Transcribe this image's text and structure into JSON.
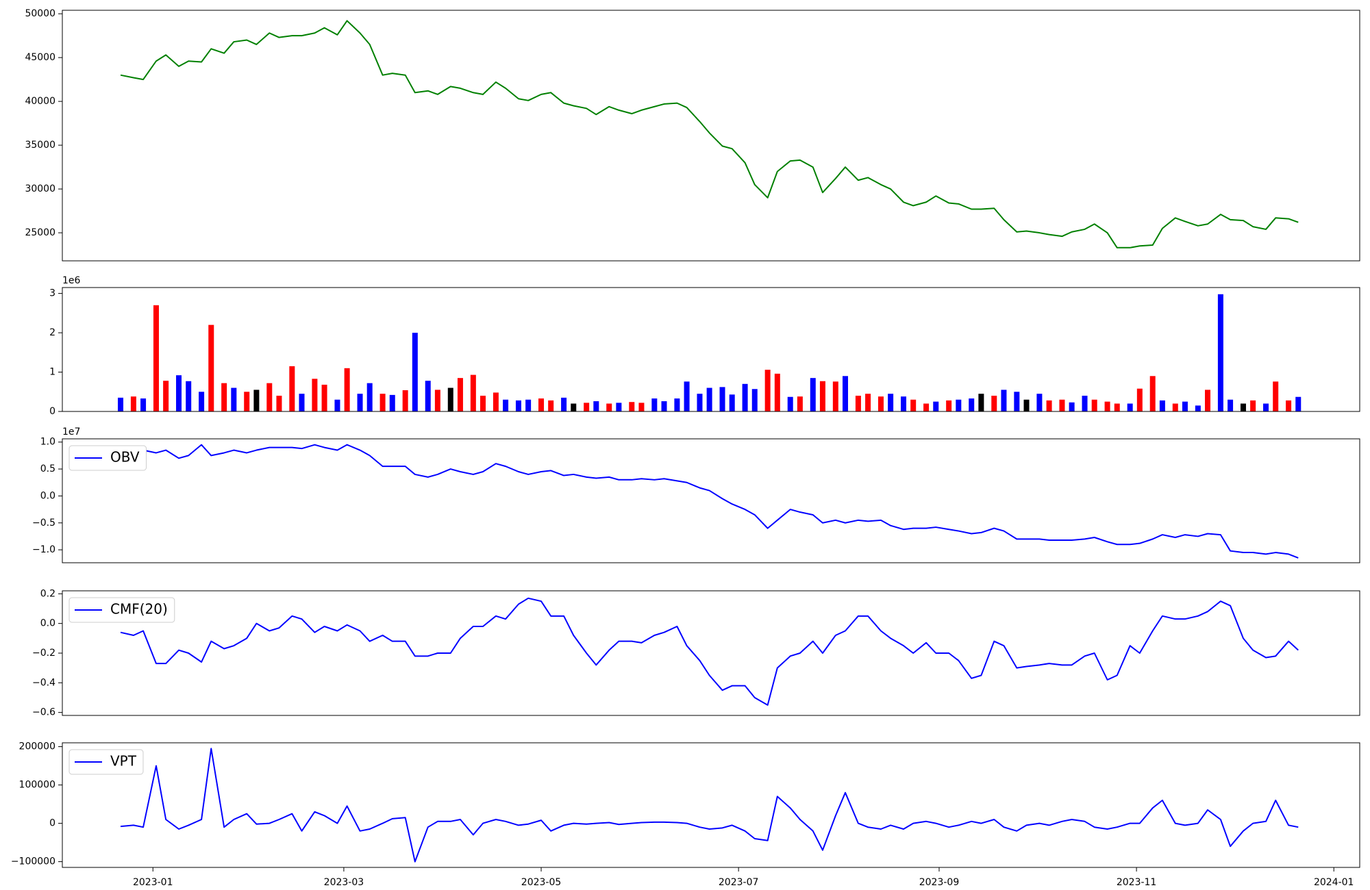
{
  "chart_data": [
    {
      "type": "line",
      "x": [
        "2022-12-22",
        "2022-12-26",
        "2022-12-29",
        "2023-01-02",
        "2023-01-05",
        "2023-01-09",
        "2023-01-12",
        "2023-01-16",
        "2023-01-19",
        "2023-01-23",
        "2023-01-26",
        "2023-01-30",
        "2023-02-02",
        "2023-02-06",
        "2023-02-09",
        "2023-02-13",
        "2023-02-16",
        "2023-02-20",
        "2023-02-23",
        "2023-02-27",
        "2023-03-02",
        "2023-03-06",
        "2023-03-09",
        "2023-03-13",
        "2023-03-16",
        "2023-03-20",
        "2023-03-23",
        "2023-03-27",
        "2023-03-30",
        "2023-04-03",
        "2023-04-06",
        "2023-04-10",
        "2023-04-13",
        "2023-04-17",
        "2023-04-20",
        "2023-04-24",
        "2023-04-27",
        "2023-05-01",
        "2023-05-04",
        "2023-05-08",
        "2023-05-11",
        "2023-05-15",
        "2023-05-18",
        "2023-05-22",
        "2023-05-25",
        "2023-05-29",
        "2023-06-01",
        "2023-06-05",
        "2023-06-08",
        "2023-06-12",
        "2023-06-15",
        "2023-06-19",
        "2023-06-22",
        "2023-06-26",
        "2023-06-29",
        "2023-07-03",
        "2023-07-06",
        "2023-07-10",
        "2023-07-13",
        "2023-07-17",
        "2023-07-20",
        "2023-07-24",
        "2023-07-27",
        "2023-07-31",
        "2023-08-03",
        "2023-08-07",
        "2023-08-10",
        "2023-08-14",
        "2023-08-17",
        "2023-08-21",
        "2023-08-24",
        "2023-08-28",
        "2023-08-31",
        "2023-09-04",
        "2023-09-07",
        "2023-09-11",
        "2023-09-14",
        "2023-09-18",
        "2023-09-21",
        "2023-09-25",
        "2023-09-28",
        "2023-10-02",
        "2023-10-05",
        "2023-10-09",
        "2023-10-12",
        "2023-10-16",
        "2023-10-19",
        "2023-10-23",
        "2023-10-26",
        "2023-10-30",
        "2023-11-02",
        "2023-11-06",
        "2023-11-09",
        "2023-11-13",
        "2023-11-16",
        "2023-11-20",
        "2023-11-23",
        "2023-11-27",
        "2023-11-30",
        "2023-12-04",
        "2023-12-07",
        "2023-12-11",
        "2023-12-14",
        "2023-12-18",
        "2023-12-21"
      ],
      "xlim": [
        "2022-12-04",
        "2024-01-09"
      ],
      "series": [
        {
          "color": "green",
          "values": [
            43000,
            42700,
            42500,
            44600,
            45300,
            44000,
            44600,
            44500,
            46000,
            45500,
            46800,
            47000,
            46500,
            47800,
            47300,
            47500,
            47500,
            47800,
            48400,
            47600,
            49200,
            47800,
            46500,
            43000,
            43200,
            43000,
            41000,
            41200,
            40800,
            41700,
            41500,
            41000,
            40800,
            42200,
            41500,
            40300,
            40100,
            40800,
            41000,
            39800,
            39500,
            39200,
            38500,
            39400,
            39000,
            38600,
            39000,
            39400,
            39700,
            39800,
            39300,
            37700,
            36400,
            34900,
            34600,
            33000,
            30500,
            29000,
            32000,
            33200,
            33300,
            32500,
            29600,
            31200,
            32500,
            31000,
            31300,
            30500,
            30000,
            28500,
            28100,
            28500,
            29200,
            28400,
            28300,
            27700,
            27700,
            27800,
            26500,
            25100,
            25200,
            25000,
            24800,
            24600,
            25100,
            25400,
            26000,
            25000,
            23300,
            23300,
            23500,
            23600,
            25500,
            26700,
            26300,
            25800,
            26000,
            27100,
            26500,
            26400,
            25700,
            25400,
            26700,
            26600,
            26200
          ]
        }
      ],
      "ylim": [
        21800,
        50400
      ],
      "yticks": [
        25000,
        30000,
        35000,
        40000,
        45000,
        50000
      ]
    },
    {
      "type": "bar",
      "values": [
        350000,
        380000,
        330000,
        2700000,
        780000,
        920000,
        770000,
        500000,
        2200000,
        720000,
        600000,
        500000,
        550000,
        720000,
        400000,
        1150000,
        450000,
        830000,
        680000,
        300000,
        1100000,
        450000,
        720000,
        450000,
        420000,
        540000,
        2000000,
        780000,
        550000,
        600000,
        850000,
        930000,
        400000,
        480000,
        300000,
        280000,
        300000,
        330000,
        280000,
        350000,
        200000,
        220000,
        260000,
        200000,
        220000,
        240000,
        220000,
        330000,
        260000,
        330000,
        760000,
        450000,
        600000,
        620000,
        430000,
        700000,
        570000,
        1060000,
        960000,
        370000,
        380000,
        850000,
        770000,
        760000,
        900000,
        400000,
        450000,
        380000,
        450000,
        380000,
        300000,
        200000,
        250000,
        280000,
        300000,
        330000,
        450000,
        400000,
        550000,
        500000,
        300000,
        450000,
        280000,
        300000,
        230000,
        400000,
        300000,
        250000,
        200000,
        200000,
        580000,
        900000,
        280000,
        200000,
        250000,
        150000,
        550000,
        2980000,
        300000,
        200000,
        280000,
        200000,
        760000,
        280000,
        370000
      ],
      "colors": [
        "blue",
        "red",
        "blue",
        "red",
        "red",
        "blue",
        "blue",
        "blue",
        "red",
        "red",
        "blue",
        "red",
        "black",
        "red",
        "red",
        "red",
        "blue",
        "red",
        "red",
        "blue",
        "red",
        "blue",
        "blue",
        "red",
        "blue",
        "red",
        "blue",
        "blue",
        "red",
        "black",
        "red",
        "red",
        "red",
        "red",
        "blue",
        "blue",
        "blue",
        "red",
        "red",
        "blue",
        "black",
        "red",
        "blue",
        "red",
        "blue",
        "red",
        "red",
        "blue",
        "blue",
        "blue",
        "blue",
        "blue",
        "blue",
        "blue",
        "blue",
        "blue",
        "blue",
        "red",
        "red",
        "blue",
        "red",
        "blue",
        "red",
        "red",
        "blue",
        "red",
        "red",
        "red",
        "blue",
        "blue",
        "red",
        "red",
        "blue",
        "red",
        "blue",
        "blue",
        "black",
        "red",
        "blue",
        "blue",
        "black",
        "blue",
        "red",
        "red",
        "blue",
        "blue",
        "red",
        "red",
        "red",
        "blue",
        "red",
        "red",
        "blue",
        "red",
        "blue",
        "blue",
        "red",
        "blue",
        "blue",
        "black",
        "red",
        "blue",
        "red",
        "red",
        "blue"
      ],
      "ylim": [
        0,
        3150000
      ],
      "yticks": [
        0,
        {
          "value": 1000000,
          "label": "1"
        },
        {
          "value": 2000000,
          "label": "2"
        },
        {
          "value": 3000000,
          "label": "3"
        }
      ],
      "offset_label": "1e6"
    },
    {
      "type": "line",
      "series": [
        {
          "name": "OBV",
          "color": "blue",
          "values": [
            9000000,
            8500000,
            8500000,
            8000000,
            8500000,
            7000000,
            7500000,
            9500000,
            7500000,
            8000000,
            8500000,
            8000000,
            8500000,
            9000000,
            9000000,
            9000000,
            8800000,
            9500000,
            9000000,
            8500000,
            9500000,
            8500000,
            7500000,
            5500000,
            5500000,
            5500000,
            4000000,
            3500000,
            4000000,
            5000000,
            4500000,
            4000000,
            4500000,
            6000000,
            5500000,
            4500000,
            4000000,
            4500000,
            4700000,
            3800000,
            4000000,
            3500000,
            3300000,
            3500000,
            3000000,
            3000000,
            3200000,
            3000000,
            3200000,
            2800000,
            2500000,
            1500000,
            1000000,
            -500000,
            -1500000,
            -2500000,
            -3500000,
            -6000000,
            -4500000,
            -2500000,
            -3000000,
            -3500000,
            -5000000,
            -4500000,
            -5000000,
            -4500000,
            -4700000,
            -4500000,
            -5500000,
            -6200000,
            -6000000,
            -6000000,
            -5800000,
            -6200000,
            -6500000,
            -7000000,
            -6800000,
            -6000000,
            -6500000,
            -8000000,
            -8000000,
            -8000000,
            -8200000,
            -8200000,
            -8200000,
            -8000000,
            -7700000,
            -8500000,
            -9000000,
            -9000000,
            -8800000,
            -8000000,
            -7200000,
            -7700000,
            -7200000,
            -7500000,
            -7000000,
            -7200000,
            -10200000,
            -10500000,
            -10500000,
            -10800000,
            -10500000,
            -10800000,
            -11500000
          ]
        }
      ],
      "ylim": [
        -12400000,
        10600000
      ],
      "yticks": [
        {
          "value": -10000000,
          "label": "−1.0"
        },
        {
          "value": -5000000,
          "label": "−0.5"
        },
        {
          "value": 0,
          "label": "0.0"
        },
        {
          "value": 5000000,
          "label": "0.5"
        },
        {
          "value": 10000000,
          "label": "1.0"
        }
      ],
      "offset_label": "1e7",
      "legend": "upper left"
    },
    {
      "type": "line",
      "series": [
        {
          "name": "CMF(20)",
          "color": "blue",
          "values": [
            -0.06,
            -0.08,
            -0.05,
            -0.27,
            -0.27,
            -0.18,
            -0.2,
            -0.26,
            -0.12,
            -0.17,
            -0.15,
            -0.1,
            0.0,
            -0.05,
            -0.03,
            0.05,
            0.03,
            -0.06,
            -0.02,
            -0.05,
            -0.01,
            -0.05,
            -0.12,
            -0.08,
            -0.12,
            -0.12,
            -0.22,
            -0.22,
            -0.2,
            -0.2,
            -0.1,
            -0.02,
            -0.02,
            0.05,
            0.03,
            0.13,
            0.17,
            0.15,
            0.05,
            0.05,
            -0.08,
            -0.2,
            -0.28,
            -0.18,
            -0.12,
            -0.12,
            -0.13,
            -0.08,
            -0.06,
            -0.02,
            -0.15,
            -0.25,
            -0.35,
            -0.45,
            -0.42,
            -0.42,
            -0.5,
            -0.55,
            -0.3,
            -0.22,
            -0.2,
            -0.12,
            -0.2,
            -0.08,
            -0.05,
            0.05,
            0.05,
            -0.05,
            -0.1,
            -0.15,
            -0.2,
            -0.13,
            -0.2,
            -0.2,
            -0.25,
            -0.37,
            -0.35,
            -0.12,
            -0.15,
            -0.3,
            -0.29,
            -0.28,
            -0.27,
            -0.28,
            -0.28,
            -0.22,
            -0.2,
            -0.38,
            -0.35,
            -0.15,
            -0.2,
            -0.05,
            0.05,
            0.03,
            0.03,
            0.05,
            0.08,
            0.15,
            0.12,
            -0.1,
            -0.18,
            -0.23,
            -0.22,
            -0.12,
            -0.18
          ]
        }
      ],
      "ylim": [
        -0.62,
        0.22
      ],
      "yticks": [
        {
          "value": -0.6,
          "label": "−0.6"
        },
        {
          "value": -0.4,
          "label": "−0.4"
        },
        {
          "value": -0.2,
          "label": "−0.2"
        },
        {
          "value": 0,
          "label": "0.0"
        },
        0.2
      ],
      "legend": "upper left"
    },
    {
      "type": "line",
      "series": [
        {
          "name": "VPT",
          "color": "blue",
          "values": [
            -8000,
            -5000,
            -10000,
            150000,
            10000,
            -15000,
            -5000,
            10000,
            195000,
            -10000,
            10000,
            25000,
            -2000,
            0,
            10000,
            25000,
            -20000,
            30000,
            20000,
            0,
            45000,
            -20000,
            -15000,
            0,
            12000,
            15000,
            -100000,
            -10000,
            5000,
            5000,
            10000,
            -30000,
            0,
            10000,
            5000,
            -5000,
            -2000,
            8000,
            -20000,
            -5000,
            0,
            -2000,
            0,
            2000,
            -3000,
            0,
            2000,
            3000,
            3000,
            2000,
            0,
            -10000,
            -15000,
            -12000,
            -5000,
            -20000,
            -40000,
            -45000,
            70000,
            40000,
            10000,
            -20000,
            -70000,
            20000,
            80000,
            0,
            -10000,
            -15000,
            -5000,
            -15000,
            0,
            5000,
            0,
            -10000,
            -5000,
            5000,
            0,
            10000,
            -10000,
            -20000,
            -5000,
            0,
            -5000,
            5000,
            10000,
            5000,
            -10000,
            -15000,
            -10000,
            0,
            0,
            40000,
            60000,
            0,
            -5000,
            0,
            35000,
            10000,
            -60000,
            -20000,
            0,
            5000,
            60000,
            -5000,
            -10000
          ]
        }
      ],
      "ylim": [
        -115000,
        210000
      ],
      "yticks": [
        {
          "value": -100000,
          "label": "−100000"
        },
        0,
        100000,
        200000
      ],
      "legend": "upper left",
      "xticks": [
        {
          "value": "2023-01-01",
          "label": "2023-01"
        },
        {
          "value": "2023-03-01",
          "label": "2023-03"
        },
        {
          "value": "2023-05-01",
          "label": "2023-05"
        },
        {
          "value": "2023-07-01",
          "label": "2023-07"
        },
        {
          "value": "2023-09-01",
          "label": "2023-09"
        },
        {
          "value": "2023-11-01",
          "label": "2023-11"
        },
        {
          "value": "2024-01-01",
          "label": "2024-01"
        }
      ]
    }
  ]
}
